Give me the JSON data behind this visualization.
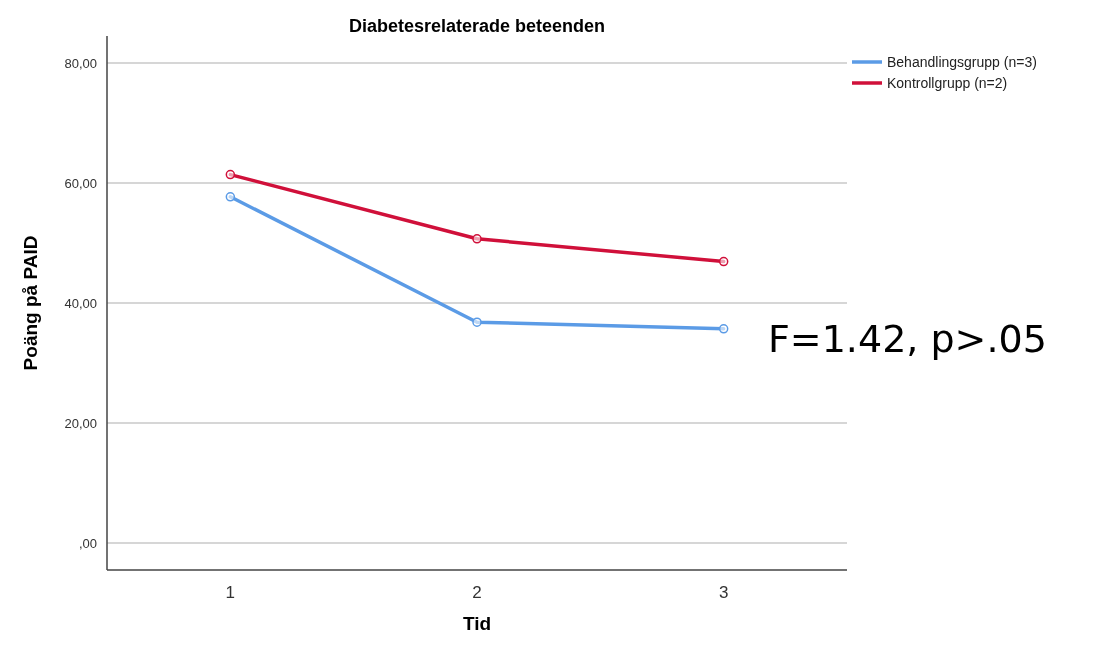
{
  "chart_data": {
    "type": "line",
    "title": "Diabetesrelaterade beteenden",
    "xlabel": "Tid",
    "ylabel": "Poäng på PAID",
    "categories": [
      "1",
      "2",
      "3"
    ],
    "series": [
      {
        "name": "Behandlingsgrupp (n=3)",
        "color": "#5b9be6",
        "values": [
          57.7,
          36.8,
          35.7
        ]
      },
      {
        "name": "Kontrollgrupp (n=2)",
        "color": "#d0103a",
        "values": [
          61.4,
          50.7,
          46.9
        ]
      }
    ],
    "ylim": [
      -4.5,
      84.5
    ],
    "yticks": [
      {
        "value": 0,
        "label": ",00"
      },
      {
        "value": 20,
        "label": "20,00"
      },
      {
        "value": 40,
        "label": "40,00"
      },
      {
        "value": 60,
        "label": "60,00"
      },
      {
        "value": 80,
        "label": "80,00"
      }
    ],
    "grid": "y",
    "legend": "top right",
    "marker": "circle",
    "line_style": "solid",
    "annotations": [
      "F=1.42, p>.05"
    ]
  }
}
